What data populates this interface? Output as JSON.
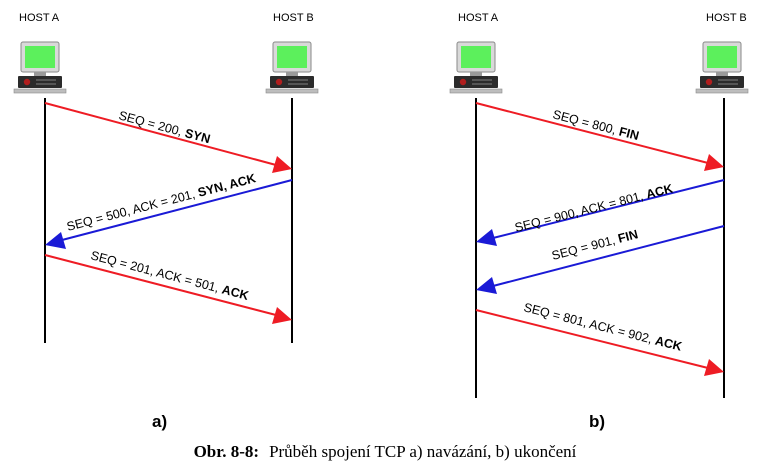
{
  "colors": {
    "syn_fin_ack_red": "#ee1c24",
    "reply_blue": "#1a1ad6",
    "monitor_green": "#5cf05c"
  },
  "panel_a": {
    "host_a": "HOST A",
    "host_b": "HOST B",
    "label": "a)",
    "messages": [
      {
        "plain": "SEQ = 200, ",
        "bold": "SYN",
        "direction": "A→B",
        "color": "red"
      },
      {
        "plain": "SEQ = 500, ACK = 201, ",
        "bold": "SYN, ACK",
        "direction": "B→A",
        "color": "blue"
      },
      {
        "plain": "SEQ = 201, ACK = 501, ",
        "bold": "ACK",
        "direction": "A→B",
        "color": "red"
      }
    ]
  },
  "panel_b": {
    "host_a": "HOST A",
    "host_b": "HOST B",
    "label": "b)",
    "messages": [
      {
        "plain": "SEQ = 800, ",
        "bold": "FIN",
        "direction": "A→B",
        "color": "red"
      },
      {
        "plain": "SEQ = 900, ACK = 801, ",
        "bold": "ACK",
        "direction": "B→A",
        "color": "blue"
      },
      {
        "plain": "SEQ = 901, ",
        "bold": "FIN",
        "direction": "B→A",
        "color": "blue"
      },
      {
        "plain": "SEQ = 801, ACK = 902, ",
        "bold": "ACK",
        "direction": "A→B",
        "color": "red"
      }
    ]
  },
  "caption": {
    "prefix": "Obr. 8-8:",
    "text": "Průběh spojení TCP a) navázání, b) ukončení"
  }
}
